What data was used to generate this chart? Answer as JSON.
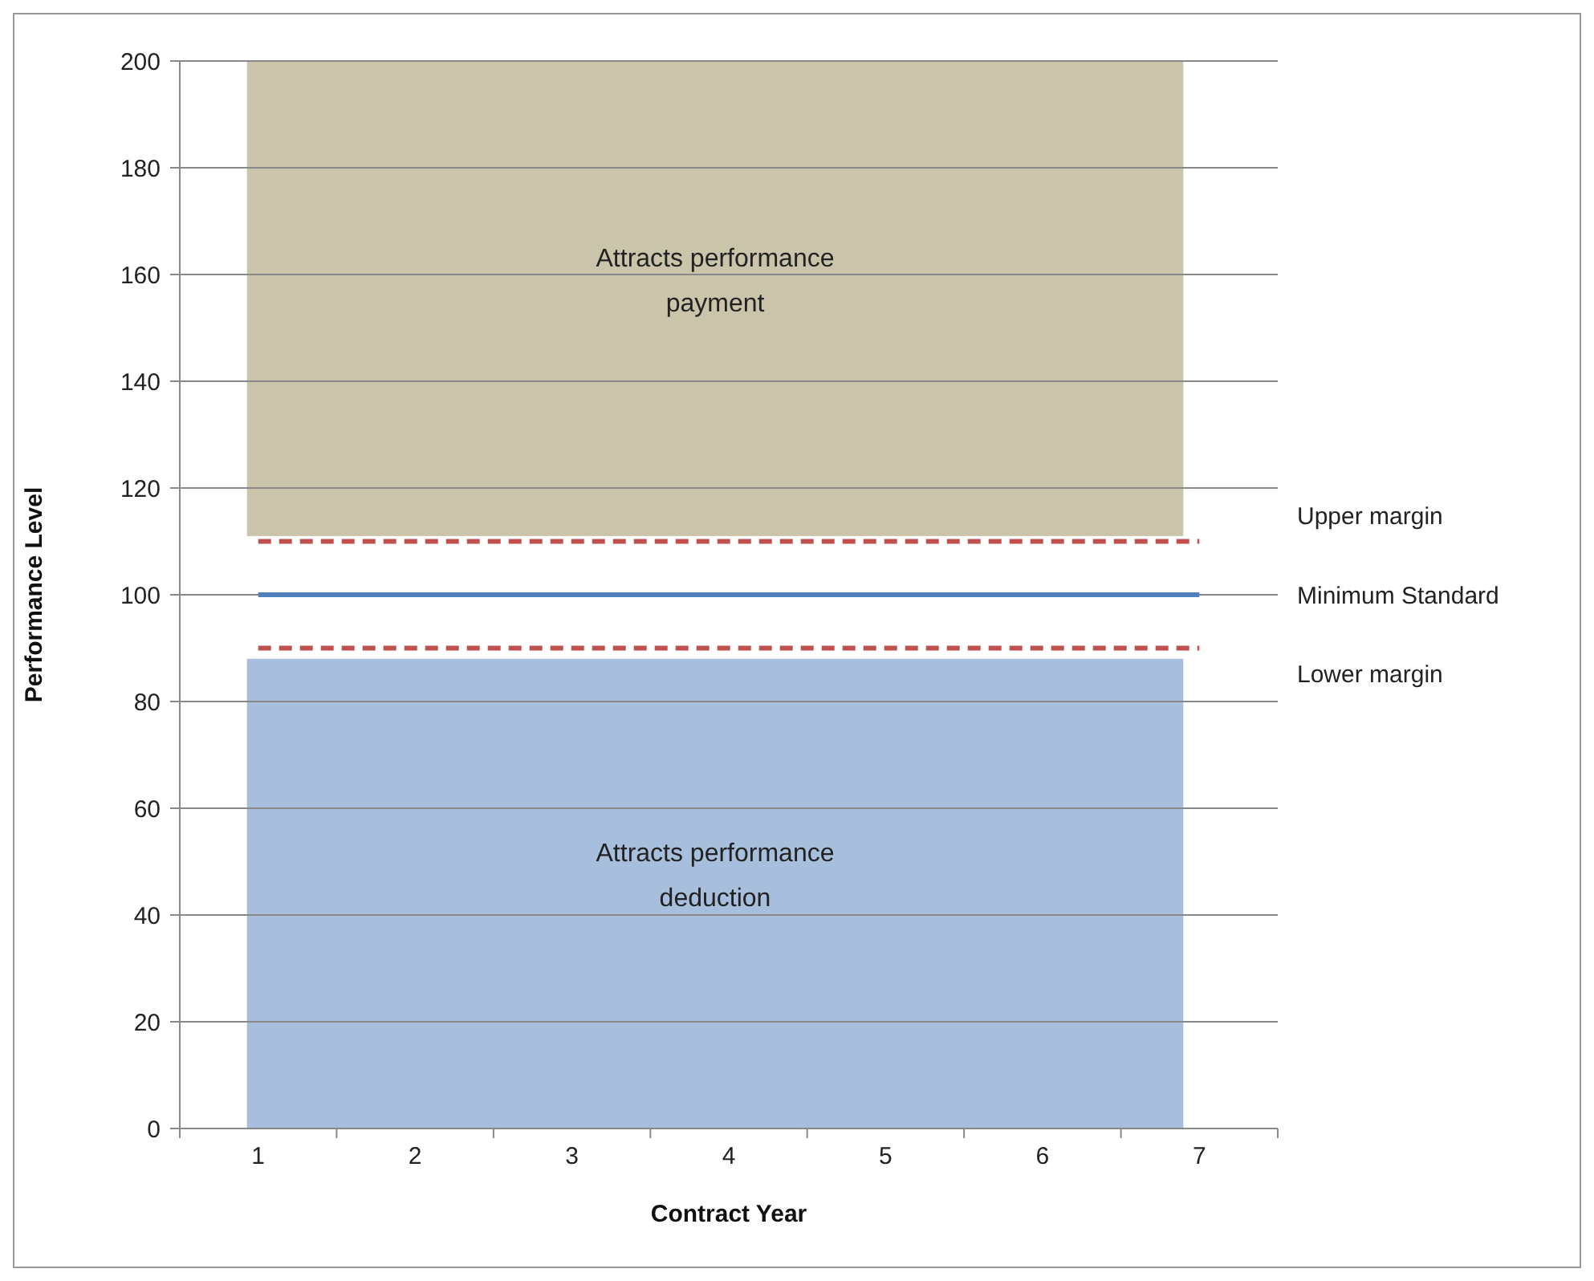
{
  "chart_data": {
    "type": "line",
    "xlabel": "Contract Year",
    "ylabel": "Performance Level",
    "categories": [
      "1",
      "2",
      "3",
      "4",
      "5",
      "6",
      "7"
    ],
    "series": [
      {
        "name": "Upper margin",
        "color": "#c0504d",
        "line_style": "dashed",
        "values": [
          110,
          110,
          110,
          110,
          110,
          110,
          110
        ]
      },
      {
        "name": "Minimum Standard",
        "color": "#4f81bd",
        "line_style": "solid",
        "values": [
          100,
          100,
          100,
          100,
          100,
          100,
          100
        ]
      },
      {
        "name": "Lower margin",
        "color": "#c0504d",
        "line_style": "dashed",
        "values": [
          90,
          90,
          90,
          90,
          90,
          90,
          90
        ]
      }
    ],
    "bands": [
      {
        "axis": "y",
        "from": 111,
        "to": 200,
        "label": "Attracts performance payment",
        "color": "#c9c4aa"
      },
      {
        "axis": "y",
        "from": 0,
        "to": 88,
        "label": "Attracts performance deduction",
        "color": "#a7bfdd"
      }
    ],
    "ylim": [
      0,
      200
    ],
    "yticks": [
      0,
      20,
      40,
      60,
      80,
      100,
      120,
      140,
      160,
      180,
      200
    ],
    "grid": "y",
    "marker": "none"
  }
}
